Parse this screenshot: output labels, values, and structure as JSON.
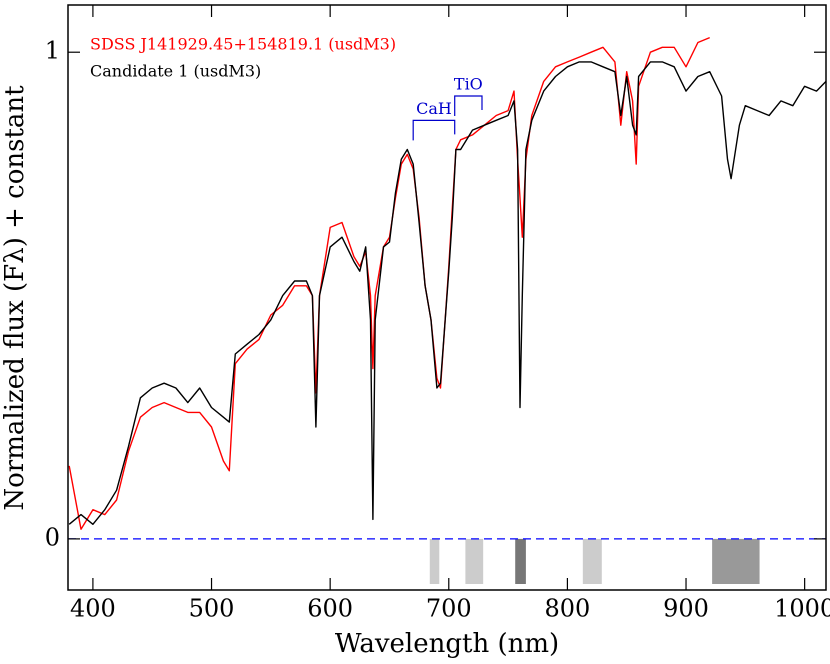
{
  "chart_data": {
    "type": "line",
    "xlabel": "Wavelength (nm)",
    "ylabel": "Normalized flux (Fλ) + constant",
    "xlim": [
      379,
      1018
    ],
    "ylim": [
      -0.105,
      1.097
    ],
    "xticks": [
      400,
      500,
      600,
      700,
      800,
      900,
      1000
    ],
    "yticks": [
      0,
      1
    ],
    "legend": "upper left",
    "x": [
      380,
      390,
      400,
      410,
      420,
      430,
      440,
      450,
      460,
      470,
      480,
      490,
      500,
      510,
      515,
      520,
      530,
      540,
      550,
      560,
      570,
      580,
      585,
      588,
      591,
      600,
      610,
      620,
      625,
      630,
      634,
      636,
      638,
      645,
      650,
      655,
      660,
      665,
      670,
      675,
      680,
      685,
      690,
      693,
      700,
      703,
      706,
      710,
      720,
      730,
      740,
      750,
      755,
      758,
      760,
      762,
      765,
      770,
      780,
      790,
      800,
      810,
      820,
      830,
      840,
      845,
      850,
      855,
      858,
      860,
      870,
      880,
      890,
      900,
      910,
      920,
      930,
      935,
      938,
      945,
      950,
      960,
      970,
      980,
      990,
      1000,
      1010,
      1018
    ],
    "series": [
      {
        "name": "SDSS J141929.45+154819.1 (usdM3)",
        "color": "#ff0000",
        "values": [
          0.15,
          0.02,
          0.06,
          0.05,
          0.08,
          0.18,
          0.25,
          0.27,
          0.28,
          0.27,
          0.26,
          0.26,
          0.23,
          0.16,
          0.14,
          0.36,
          0.39,
          0.41,
          0.46,
          0.48,
          0.52,
          0.52,
          0.5,
          0.3,
          0.5,
          0.64,
          0.65,
          0.58,
          0.56,
          0.59,
          0.5,
          0.35,
          0.5,
          0.6,
          0.62,
          0.7,
          0.77,
          0.79,
          0.76,
          0.66,
          0.52,
          0.45,
          0.33,
          0.31,
          0.56,
          0.68,
          0.8,
          0.82,
          0.83,
          0.85,
          0.87,
          0.88,
          0.92,
          0.78,
          0.7,
          0.62,
          0.78,
          0.87,
          0.94,
          0.97,
          0.98,
          0.99,
          1.0,
          1.01,
          0.98,
          0.85,
          0.96,
          0.9,
          0.77,
          0.93,
          1.0,
          1.01,
          1.01,
          0.97,
          1.02,
          1.03,
          null,
          null,
          null,
          null,
          null,
          null,
          null,
          null,
          null,
          null,
          null,
          null
        ]
      },
      {
        "name": "Candidate 1 (usdM3)",
        "color": "#000000",
        "values": [
          0.03,
          0.05,
          0.03,
          0.06,
          0.1,
          0.19,
          0.29,
          0.31,
          0.32,
          0.31,
          0.28,
          0.31,
          0.27,
          0.25,
          0.24,
          0.38,
          0.4,
          0.42,
          0.45,
          0.5,
          0.53,
          0.53,
          0.5,
          0.23,
          0.5,
          0.6,
          0.62,
          0.57,
          0.55,
          0.6,
          0.45,
          0.04,
          0.45,
          0.6,
          0.61,
          0.71,
          0.78,
          0.8,
          0.77,
          0.65,
          0.52,
          0.45,
          0.31,
          0.32,
          0.55,
          0.66,
          0.8,
          0.8,
          0.84,
          0.85,
          0.86,
          0.87,
          0.9,
          0.8,
          0.27,
          0.5,
          0.8,
          0.86,
          0.92,
          0.95,
          0.97,
          0.98,
          0.98,
          0.97,
          0.96,
          0.87,
          0.95,
          0.85,
          0.83,
          0.95,
          0.98,
          0.98,
          0.97,
          0.92,
          0.95,
          0.96,
          0.91,
          0.78,
          0.74,
          0.85,
          0.89,
          0.88,
          0.87,
          0.9,
          0.89,
          0.93,
          0.92,
          0.94
        ]
      }
    ],
    "hline": {
      "y": 0,
      "color": "#0000ff"
    },
    "bands": [
      {
        "x": [
          684,
          692
        ],
        "color": "#cccccc"
      },
      {
        "x": [
          714,
          729
        ],
        "color": "#cccccc"
      },
      {
        "x": [
          756,
          765
        ],
        "color": "#777777"
      },
      {
        "x": [
          813,
          829
        ],
        "color": "#cccccc"
      },
      {
        "x": [
          922,
          962
        ],
        "color": "#999999"
      }
    ],
    "annotations": [
      {
        "text": "CaH",
        "x": [
          670,
          705
        ],
        "y": 0.86,
        "color": "#0000cc"
      },
      {
        "text": "TiO",
        "x": [
          705,
          728
        ],
        "y": 0.91,
        "color": "#0000cc"
      }
    ]
  }
}
